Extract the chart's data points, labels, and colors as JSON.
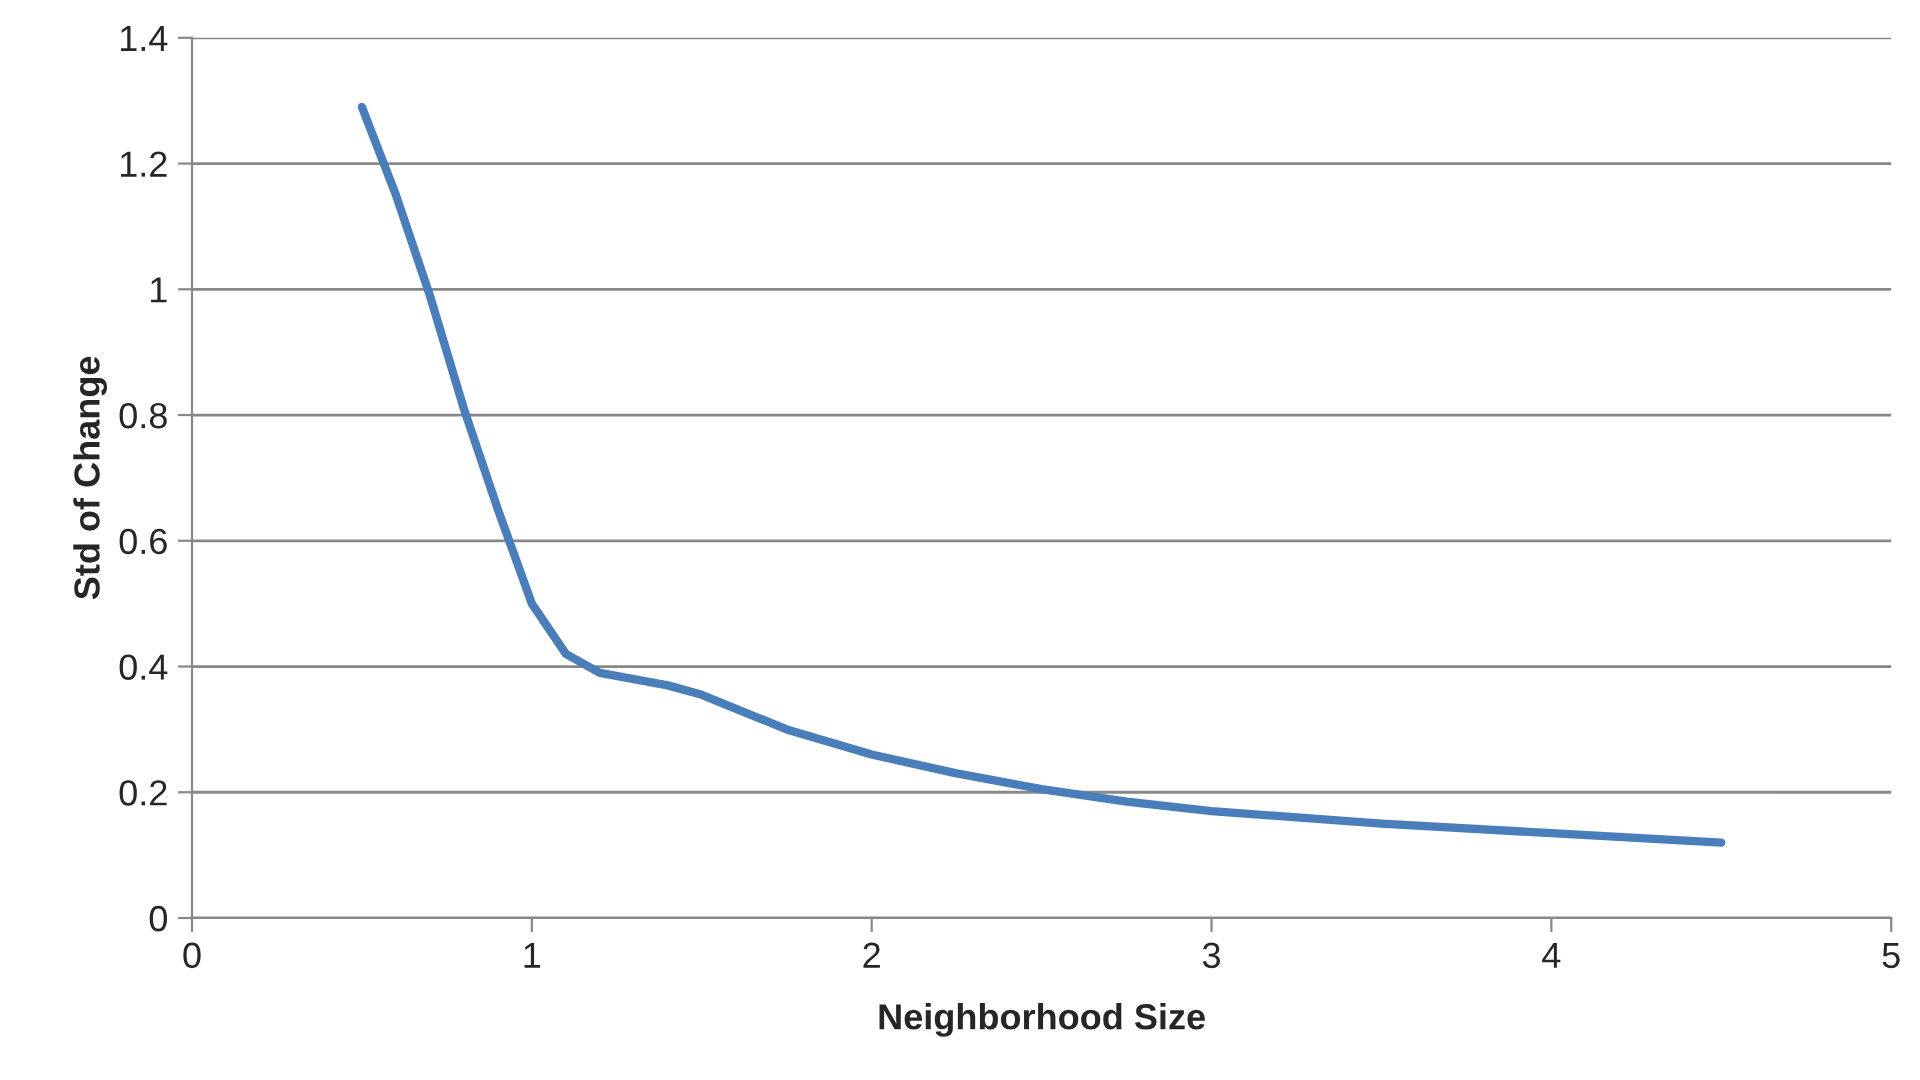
{
  "chart_data": {
    "type": "line",
    "xlabel": "Neighborhood Size",
    "ylabel": "Std of Change",
    "series": [
      {
        "color": "#4a7ebb",
        "x": [
          0.5,
          0.6,
          0.7,
          0.8,
          0.9,
          1.0,
          1.1,
          1.2,
          1.3,
          1.4,
          1.5,
          1.75,
          2.0,
          2.25,
          2.5,
          2.75,
          3.0,
          3.5,
          4.0,
          4.5
        ],
        "values": [
          1.29,
          1.15,
          0.99,
          0.81,
          0.65,
          0.5,
          0.42,
          0.39,
          0.38,
          0.37,
          0.355,
          0.3,
          0.26,
          0.23,
          0.205,
          0.185,
          0.17,
          0.15,
          0.135,
          0.12
        ]
      }
    ],
    "xlim": [
      0,
      5
    ],
    "xticks": [
      0,
      1,
      2,
      3,
      4,
      5
    ],
    "ylim": [
      0,
      1.4
    ],
    "yticks": [
      0,
      {
        "value": 0.2,
        "label": "0.2"
      },
      {
        "value": 0.4,
        "label": "0.4"
      },
      {
        "value": 0.6,
        "label": "0.6"
      },
      {
        "value": 0.8,
        "label": "0.8"
      },
      1,
      {
        "value": 1.2,
        "label": "1.2"
      },
      {
        "value": 1.4,
        "label": "1.4"
      }
    ],
    "grid": "y",
    "marker": "none",
    "line_style": "solid",
    "legend": false
  }
}
